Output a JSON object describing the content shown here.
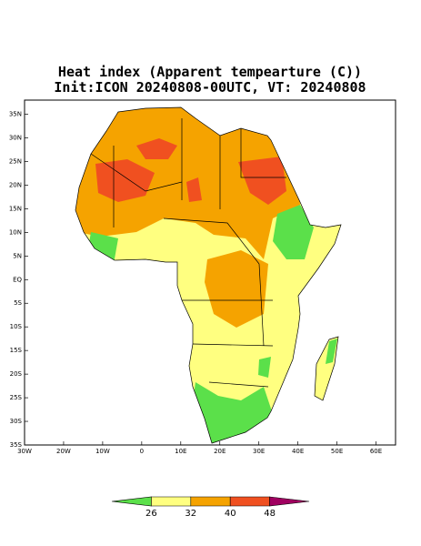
{
  "map": {
    "title": "Heat index (Apparent tempearture (C))",
    "subtitle": "Init:ICON 20240808-00UTC, VT: 20240808",
    "xlim": [
      -30,
      65
    ],
    "ylim": [
      -35,
      38
    ],
    "xticks": [
      {
        "value": -30,
        "label": "30W"
      },
      {
        "value": -20,
        "label": "20W"
      },
      {
        "value": -10,
        "label": "10W"
      },
      0,
      {
        "value": 10,
        "label": "10E"
      },
      {
        "value": 20,
        "label": "20E"
      },
      {
        "value": 30,
        "label": "30E"
      },
      {
        "value": 40,
        "label": "40E"
      },
      {
        "value": 50,
        "label": "50E"
      },
      {
        "value": 60,
        "label": "60E"
      }
    ],
    "yticks": [
      {
        "value": 35,
        "label": "35N"
      },
      {
        "value": 30,
        "label": "30N"
      },
      {
        "value": 25,
        "label": "25N"
      },
      {
        "value": 20,
        "label": "20N"
      },
      {
        "value": 15,
        "label": "15N"
      },
      {
        "value": 10,
        "label": "10N"
      },
      {
        "value": 5,
        "label": "5N"
      },
      {
        "value": 0,
        "label": "EQ"
      },
      {
        "value": -5,
        "label": "5S"
      },
      {
        "value": -10,
        "label": "10S"
      },
      {
        "value": -15,
        "label": "15S"
      },
      {
        "value": -20,
        "label": "20S"
      },
      {
        "value": -25,
        "label": "25S"
      },
      {
        "value": -30,
        "label": "30S"
      },
      {
        "value": -35,
        "label": "35S"
      }
    ],
    "colorbar": {
      "levels": [
        26,
        32,
        40,
        48
      ],
      "colors": [
        "#5be04a",
        "#ffff80",
        "#f5a300",
        "#f05020",
        "#a00060"
      ]
    }
  }
}
